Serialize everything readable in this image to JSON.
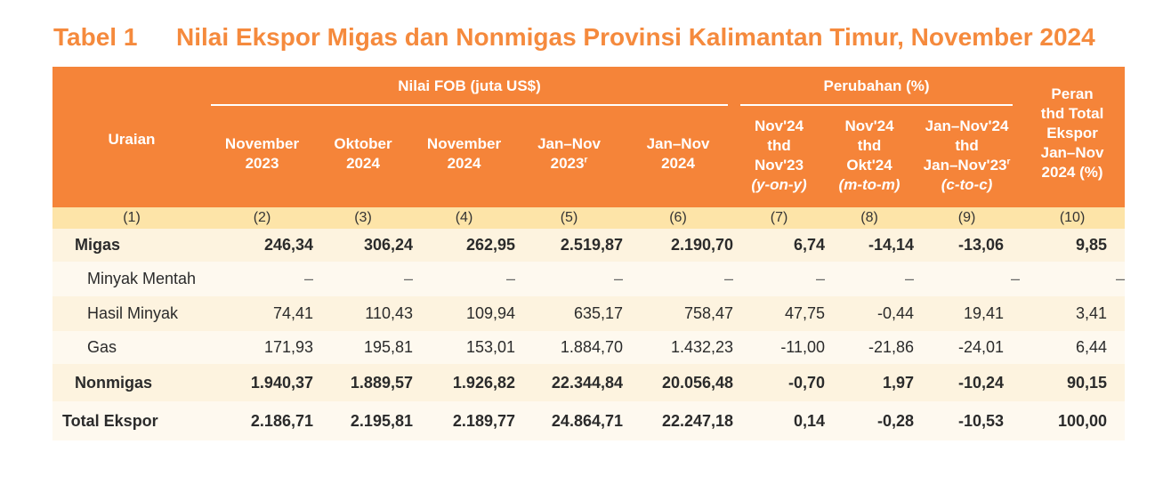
{
  "title": {
    "number": "Tabel 1",
    "text": "Nilai Ekspor Migas dan Nonmigas Provinsi Kalimantan Timur, November 2024"
  },
  "header": {
    "uraian": "Uraian",
    "group_fob": "Nilai FOB (juta US$)",
    "group_change": "Perubahan (%)",
    "peran": [
      "Peran",
      "thd Total",
      "Ekspor",
      "Jan–Nov",
      "2024 (%)"
    ],
    "columns": [
      {
        "lines": [
          "November",
          "2023"
        ]
      },
      {
        "lines": [
          "Oktober",
          "2024"
        ]
      },
      {
        "lines": [
          "November",
          "2024"
        ]
      },
      {
        "lines": [
          "Jan–Nov",
          "2023"
        ],
        "sup": "r"
      },
      {
        "lines": [
          "Jan–Nov",
          "2024"
        ]
      },
      {
        "lines": [
          "Nov'24",
          "thd",
          "Nov'23"
        ],
        "italic": "(y-on-y)"
      },
      {
        "lines": [
          "Nov'24",
          "thd",
          "Okt'24"
        ],
        "italic": "(m-to-m)"
      },
      {
        "lines": [
          "Jan–Nov'24",
          "thd",
          "Jan–Nov'23"
        ],
        "sup": "r",
        "italic": "(c-to-c)"
      }
    ]
  },
  "index_row": [
    "(1)",
    "(2)",
    "(3)",
    "(4)",
    "(5)",
    "(6)",
    "(7)",
    "(8)",
    "(9)",
    "(10)"
  ],
  "rows": [
    {
      "label": "Migas",
      "values": [
        "246,34",
        "306,24",
        "262,95",
        "2.519,87",
        "2.190,70",
        "6,74",
        "-14,14",
        "-13,06",
        "9,85"
      ]
    },
    {
      "label": "Minyak Mentah",
      "values": [
        "–",
        "–",
        "–",
        "–",
        "–",
        "–",
        "–",
        "–",
        "–"
      ]
    },
    {
      "label": "Hasil Minyak",
      "values": [
        "74,41",
        "110,43",
        "109,94",
        "635,17",
        "758,47",
        "47,75",
        "-0,44",
        "19,41",
        "3,41"
      ]
    },
    {
      "label": "Gas",
      "values": [
        "171,93",
        "195,81",
        "153,01",
        "1.884,70",
        "1.432,23",
        "-11,00",
        "-21,86",
        "-24,01",
        "6,44"
      ]
    },
    {
      "label": "Nonmigas",
      "values": [
        "1.940,37",
        "1.889,57",
        "1.926,82",
        "22.344,84",
        "20.056,48",
        "-0,70",
        "1,97",
        "-10,24",
        "90,15"
      ]
    },
    {
      "label": "Total Ekspor",
      "values": [
        "2.186,71",
        "2.195,81",
        "2.189,77",
        "24.864,71",
        "22.247,18",
        "0,14",
        "-0,28",
        "-10,53",
        "100,00"
      ]
    }
  ],
  "colors": {
    "title": "#f58a3d",
    "header_bg": "#f58439",
    "index_bg": "#fde4a8",
    "row_a": "#fdf3df",
    "row_b": "#fef9ef"
  }
}
